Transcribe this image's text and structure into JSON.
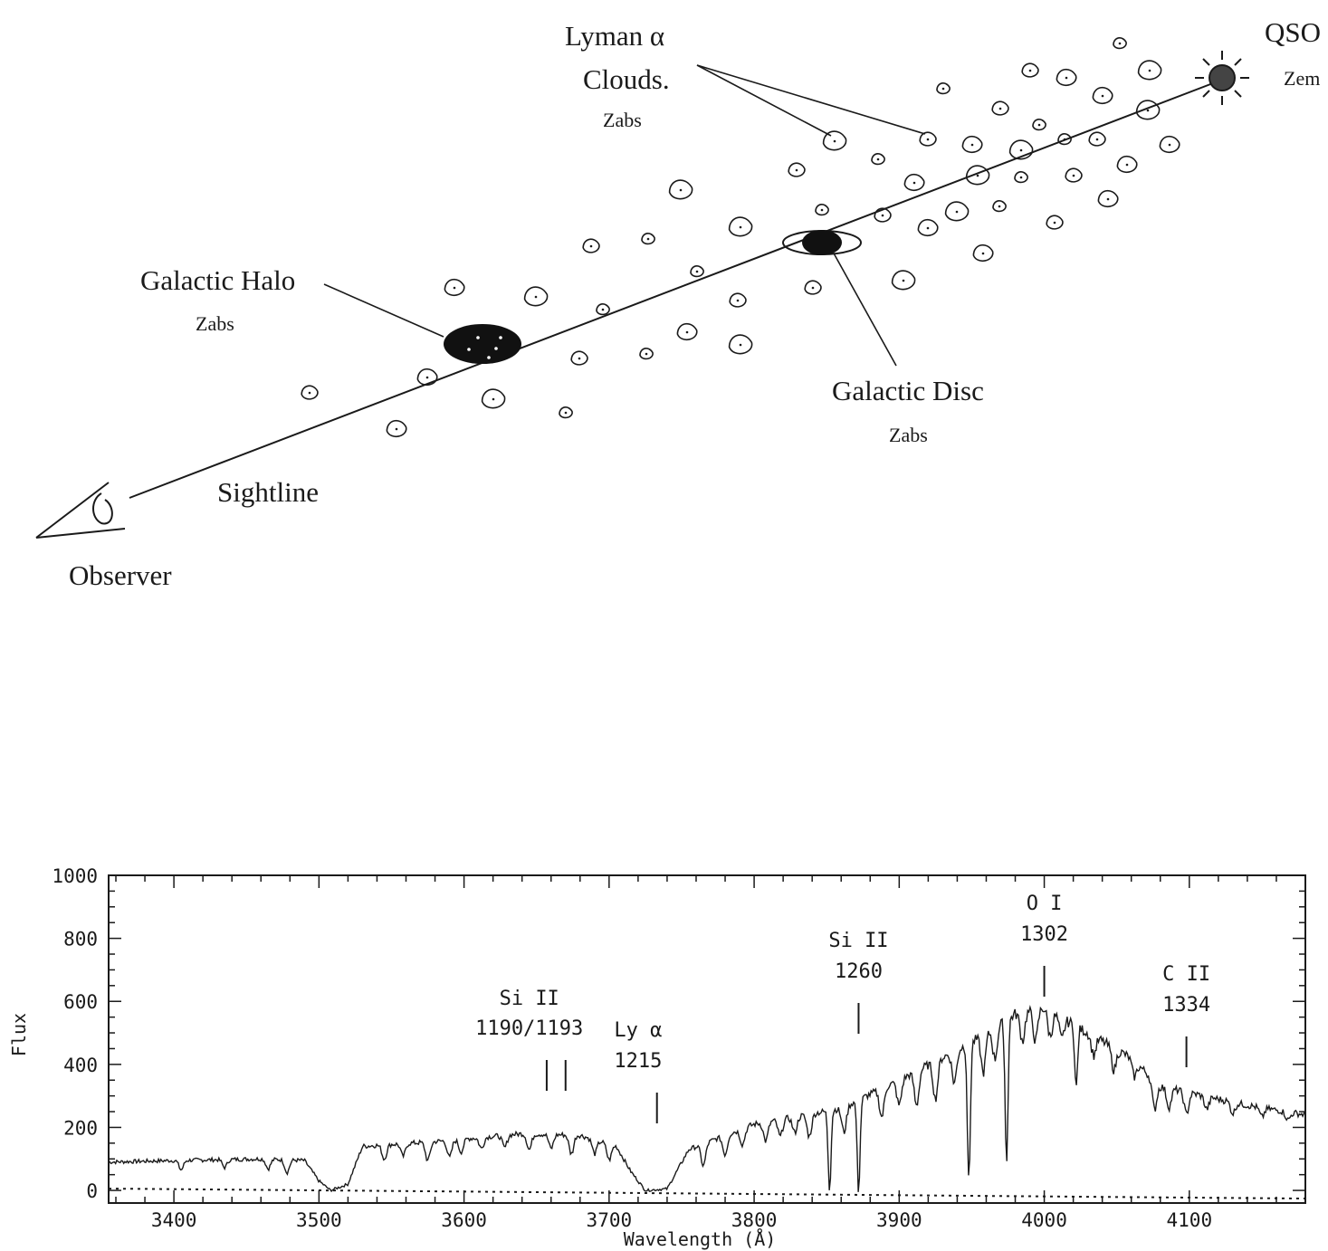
{
  "diagram": {
    "labels": {
      "lyman": "Lyman  α",
      "clouds": "Clouds.",
      "lyman_z": "Zabs",
      "qso": "QSO",
      "qso_z": "Zem",
      "halo": "Galactic Halo",
      "halo_z": "Zabs",
      "disc": "Galactic Disc",
      "disc_z": "Zabs",
      "sightline": "Sightline",
      "observer": "Observer"
    }
  },
  "chart_data": {
    "type": "line",
    "xlabel": "Wavelength (Å)",
    "ylabel": "Flux",
    "xlim": [
      3355,
      4180
    ],
    "ylim": [
      -40,
      1000
    ],
    "x_ticks": [
      3400,
      3500,
      3600,
      3700,
      3800,
      3900,
      4000,
      4100
    ],
    "y_ticks": [
      0,
      200,
      400,
      600,
      800,
      1000
    ],
    "zero_line": "dotted",
    "annotations": [
      {
        "line1": "Si II",
        "line2": "1190/1193",
        "x": [
          3657,
          3670
        ],
        "x_center": 3645
      },
      {
        "line1": "Ly α",
        "line2": "1215",
        "x": [
          3733
        ],
        "x_center": 3720
      },
      {
        "line1": "Si II",
        "line2": "1260",
        "x": [
          3872
        ],
        "x_center": 3872
      },
      {
        "line1": "O I",
        "line2": "1302",
        "x": [
          4000
        ],
        "x_center": 4000
      },
      {
        "line1": "C II",
        "line2": "1334",
        "x": [
          4098
        ],
        "x_center": 4098
      }
    ],
    "continuum": [
      [
        3355,
        90
      ],
      [
        3400,
        95
      ],
      [
        3460,
        100
      ],
      [
        3490,
        95
      ],
      [
        3500,
        30
      ],
      [
        3508,
        0
      ],
      [
        3520,
        20
      ],
      [
        3530,
        140
      ],
      [
        3580,
        155
      ],
      [
        3640,
        180
      ],
      [
        3680,
        175
      ],
      [
        3705,
        140
      ],
      [
        3715,
        60
      ],
      [
        3725,
        0
      ],
      [
        3740,
        5
      ],
      [
        3755,
        130
      ],
      [
        3800,
        210
      ],
      [
        3860,
        260
      ],
      [
        3900,
        350
      ],
      [
        3950,
        470
      ],
      [
        3980,
        560
      ],
      [
        4000,
        580
      ],
      [
        4030,
        500
      ],
      [
        4060,
        420
      ],
      [
        4080,
        330
      ],
      [
        4100,
        310
      ],
      [
        4140,
        270
      ],
      [
        4180,
        240
      ]
    ],
    "absorption_lines": [
      {
        "x": 3405,
        "depth": 30
      },
      {
        "x": 3435,
        "depth": 25
      },
      {
        "x": 3465,
        "depth": 30
      },
      {
        "x": 3478,
        "depth": 40
      },
      {
        "x": 3545,
        "depth": 45
      },
      {
        "x": 3558,
        "depth": 40
      },
      {
        "x": 3575,
        "depth": 60
      },
      {
        "x": 3590,
        "depth": 55
      },
      {
        "x": 3598,
        "depth": 40
      },
      {
        "x": 3612,
        "depth": 35
      },
      {
        "x": 3628,
        "depth": 40
      },
      {
        "x": 3645,
        "depth": 50
      },
      {
        "x": 3660,
        "depth": 45
      },
      {
        "x": 3674,
        "depth": 60
      },
      {
        "x": 3690,
        "depth": 45
      },
      {
        "x": 3700,
        "depth": 50
      },
      {
        "x": 3765,
        "depth": 70
      },
      {
        "x": 3780,
        "depth": 60
      },
      {
        "x": 3792,
        "depth": 50
      },
      {
        "x": 3808,
        "depth": 60
      },
      {
        "x": 3818,
        "depth": 55
      },
      {
        "x": 3828,
        "depth": 50
      },
      {
        "x": 3838,
        "depth": 70
      },
      {
        "x": 3852,
        "depth": 250
      },
      {
        "x": 3862,
        "depth": 80
      },
      {
        "x": 3872,
        "depth": 290
      },
      {
        "x": 3888,
        "depth": 90
      },
      {
        "x": 3900,
        "depth": 80
      },
      {
        "x": 3912,
        "depth": 110
      },
      {
        "x": 3925,
        "depth": 120
      },
      {
        "x": 3938,
        "depth": 100
      },
      {
        "x": 3948,
        "depth": 440
      },
      {
        "x": 3958,
        "depth": 120
      },
      {
        "x": 3966,
        "depth": 100
      },
      {
        "x": 3974,
        "depth": 450
      },
      {
        "x": 3985,
        "depth": 90
      },
      {
        "x": 3994,
        "depth": 100
      },
      {
        "x": 4004,
        "depth": 80
      },
      {
        "x": 4012,
        "depth": 70
      },
      {
        "x": 4022,
        "depth": 200
      },
      {
        "x": 4034,
        "depth": 60
      },
      {
        "x": 4048,
        "depth": 70
      },
      {
        "x": 4062,
        "depth": 50
      },
      {
        "x": 4076,
        "depth": 90
      },
      {
        "x": 4086,
        "depth": 60
      },
      {
        "x": 4098,
        "depth": 70
      },
      {
        "x": 4112,
        "depth": 40
      },
      {
        "x": 4130,
        "depth": 35
      },
      {
        "x": 4150,
        "depth": 30
      },
      {
        "x": 4168,
        "depth": 25
      }
    ]
  }
}
